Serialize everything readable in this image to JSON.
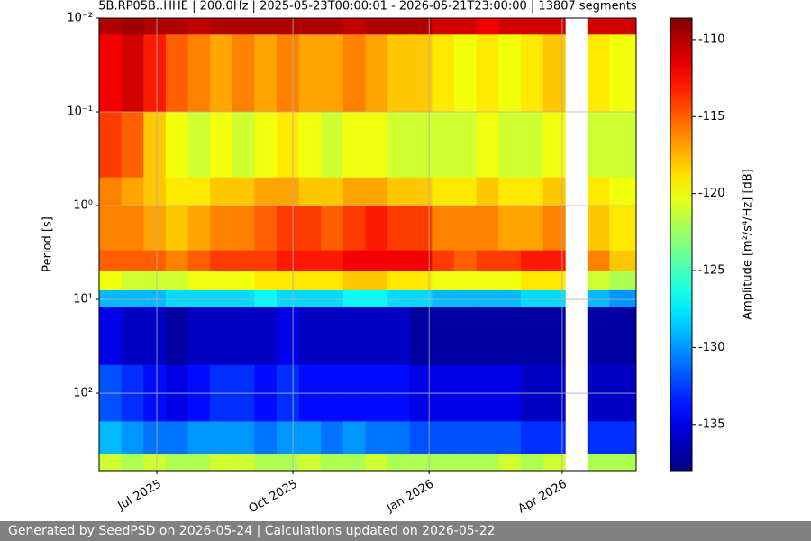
{
  "chart_data": {
    "type": "spectrogram",
    "title": "5B.RP05B..HHE | 200.0Hz | 2025-05-23T00:00:01 - 2026-05-21T23:00:00 | 13807 segments",
    "ylabel": "Period [s]",
    "colorbar_label": "Amplitude [m²/s⁴/Hz] [dB]",
    "colormap": "jet",
    "yscale": "log",
    "y_inverted": true,
    "grid": true,
    "xlim": [
      "2025-05-23",
      "2026-05-21"
    ],
    "xticks": [
      {
        "value": "2025-07-01",
        "label": "Jul 2025"
      },
      {
        "value": "2025-10-01",
        "label": "Oct 2025"
      },
      {
        "value": "2026-01-01",
        "label": "Jan 2026"
      },
      {
        "value": "2026-04-01",
        "label": "Apr 2026"
      }
    ],
    "ylim": [
      0.01,
      670
    ],
    "yticks": [
      {
        "value": 0.01,
        "label": "10⁻²"
      },
      {
        "value": 0.1,
        "label": "10⁻¹"
      },
      {
        "value": 1,
        "label": "10⁰"
      },
      {
        "value": 10,
        "label": "10¹"
      },
      {
        "value": 100,
        "label": "10²"
      }
    ],
    "zlim": [
      -138,
      -108.6
    ],
    "zticks": [
      -135,
      -130,
      -125,
      -120,
      -115,
      -110
    ],
    "time_edges": [
      "2025-05-23",
      "2025-06-07",
      "2025-06-22",
      "2025-07-07",
      "2025-07-22",
      "2025-08-06",
      "2025-08-21",
      "2025-09-05",
      "2025-09-20",
      "2025-10-05",
      "2025-10-20",
      "2025-11-04",
      "2025-11-19",
      "2025-12-04",
      "2025-12-19",
      "2026-01-03",
      "2026-01-18",
      "2026-02-02",
      "2026-02-17",
      "2026-03-04",
      "2026-03-19",
      "2026-04-03",
      "2026-04-18",
      "2026-05-03",
      "2026-05-21"
    ],
    "period_edges": [
      0.01,
      0.015,
      0.1,
      0.5,
      1,
      3,
      5,
      8,
      12,
      50,
      200,
      450,
      670
    ],
    "values": [
      [
        -110,
        -109.5,
        -110,
        -110,
        -110.5,
        -110,
        -110,
        -110,
        -110,
        -110,
        -110,
        -110.5,
        -110,
        -110,
        -110,
        -111,
        -111,
        -112,
        -111,
        -111,
        -111,
        null,
        -111,
        -111
      ],
      [
        -112,
        -111,
        -113,
        -115,
        -116,
        -117,
        -116,
        -117,
        -116,
        -117,
        -117,
        -116,
        -117,
        -118,
        -118,
        -119,
        -120,
        -119,
        -120,
        -119,
        -118,
        null,
        -119,
        -120
      ],
      [
        -114,
        -115,
        -118,
        -120,
        -121,
        -120,
        -121,
        -120,
        -119,
        -120,
        -121,
        -120,
        -120,
        -121,
        -121,
        -121,
        -121,
        -120,
        -121,
        -121,
        -120,
        null,
        -121,
        -121
      ],
      [
        -116,
        -117,
        -118,
        -119,
        -119,
        -118,
        -118,
        -117,
        -117,
        -118,
        -118,
        -117,
        -117,
        -118,
        -118,
        -119,
        -119,
        -118,
        -119,
        -119,
        -118,
        null,
        -119,
        -120
      ],
      [
        -116,
        -116,
        -117,
        -118,
        -117,
        -116,
        -116,
        -115,
        -114,
        -114,
        -115,
        -114,
        -113,
        -114,
        -114,
        -116,
        -116,
        -116,
        -117,
        -117,
        -116,
        null,
        -118,
        -119
      ],
      [
        -115,
        -115,
        -115,
        -116,
        -115,
        -114,
        -114,
        -114,
        -113,
        -113,
        -113,
        -112,
        -112,
        -112,
        -112,
        -114,
        -115,
        -114,
        -114,
        -113,
        -113,
        null,
        -116,
        -118
      ],
      [
        -120,
        -121,
        -121,
        -121,
        -120,
        -120,
        -120,
        -119,
        -119,
        -119,
        -119,
        -118,
        -118,
        -119,
        -119,
        -120,
        -120,
        -120,
        -120,
        -119,
        -119,
        null,
        -121,
        -122
      ],
      [
        -129,
        -129,
        -129,
        -128,
        -128,
        -128,
        -128,
        -127,
        -128,
        -128,
        -128,
        -127,
        -127,
        -128,
        -128,
        -129,
        -129,
        -129,
        -129,
        -128,
        -128,
        null,
        -129,
        -130
      ],
      [
        -135,
        -136,
        -136,
        -137,
        -136,
        -136,
        -136,
        -136,
        -135,
        -136,
        -136,
        -136,
        -136,
        -136,
        -137,
        -137,
        -137,
        -137,
        -137,
        -137,
        -137,
        null,
        -137,
        -137
      ],
      [
        -132,
        -133,
        -134,
        -135,
        -134,
        -133,
        -133,
        -134,
        -133,
        -134,
        -134,
        -134,
        -134,
        -134,
        -135,
        -135,
        -135,
        -135,
        -135,
        -136,
        -136,
        null,
        -136,
        -136
      ],
      [
        -129,
        -130,
        -131,
        -131,
        -130,
        -130,
        -130,
        -131,
        -130,
        -130,
        -131,
        -130,
        -131,
        -131,
        -132,
        -132,
        -132,
        -132,
        -132,
        -133,
        -133,
        null,
        -133,
        -133
      ],
      [
        -121,
        -122,
        -121,
        -122,
        -122,
        -121,
        -121,
        -122,
        -122,
        -121,
        -122,
        -122,
        -121,
        -122,
        -122,
        -122,
        -122,
        -122,
        -121,
        -122,
        -121,
        null,
        -122,
        -122
      ]
    ]
  },
  "footer": "Generated by SeedPSD on 2026-05-24 | Calculations updated on 2026-05-22"
}
